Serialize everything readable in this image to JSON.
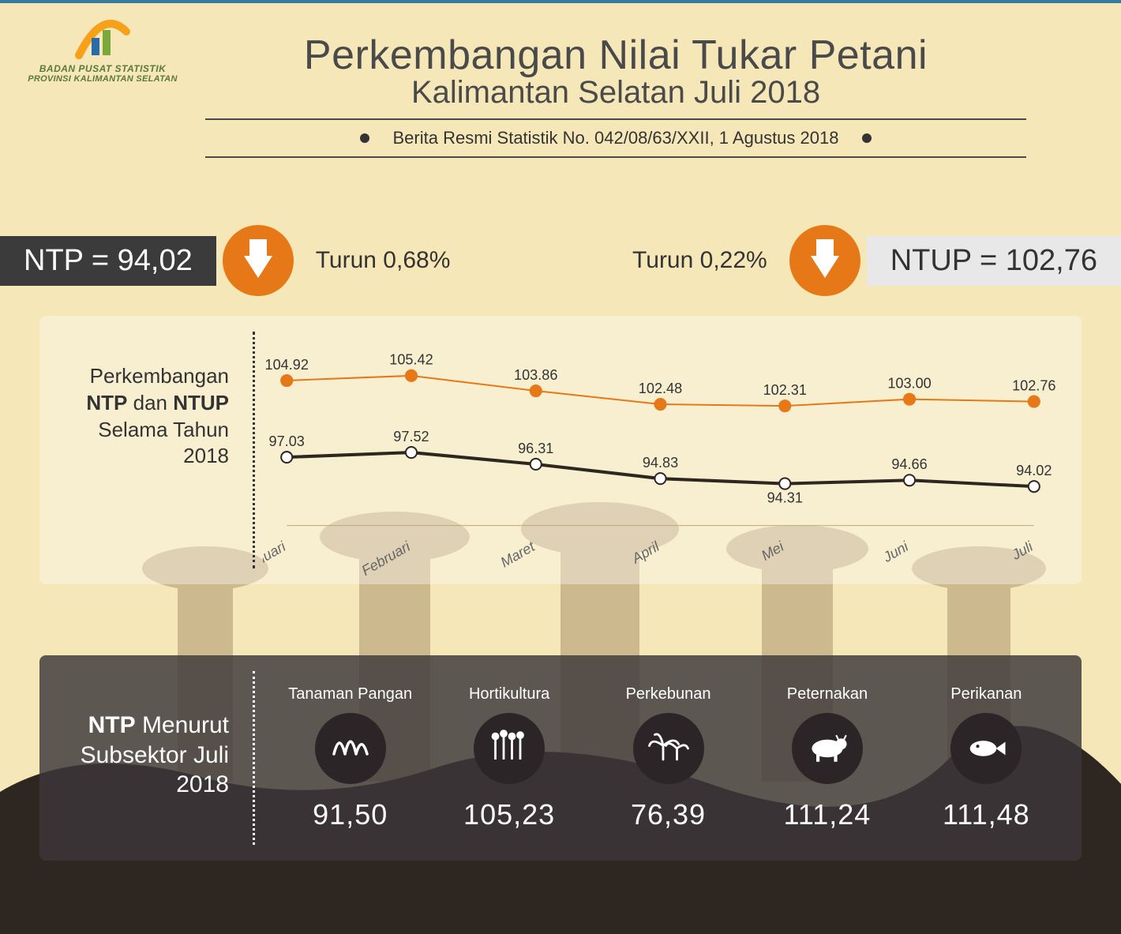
{
  "colors": {
    "background": "#f5e7b8",
    "accent_orange": "#e67817",
    "dark": "#3b3b3b",
    "line_ntp": "#2e2620",
    "line_ntup": "#e67817",
    "panel_chart_bg": "rgba(255,255,255,0.35)",
    "panel_sub_bg": "rgba(60,55,58,0.82)",
    "text": "#4a4a4a"
  },
  "logo": {
    "line1": "BADAN PUSAT STATISTIK",
    "line2": "PROVINSI KALIMANTAN SELATAN"
  },
  "title": {
    "main": "Perkembangan Nilai Tukar Petani",
    "sub": "Kalimantan Selatan Juli 2018",
    "source_line": "Berita Resmi Statistik No. 042/08/63/XXII, 1 Agustus 2018"
  },
  "metrics": {
    "ntp": {
      "label": "NTP = 94,02",
      "change_text": "Turun  0,68%",
      "arrow_color": "#e67817"
    },
    "ntup": {
      "label": "NTUP = 102,76",
      "change_text": "Turun  0,22%",
      "arrow_color": "#e67817"
    }
  },
  "chart": {
    "side_label_html": "Perkembangan <b>NTP</b> dan <b>NTUP</b> Selama Tahun 2018",
    "side_l1": "Perkembangan ",
    "side_b1": "NTP",
    "side_l2": " dan ",
    "side_b2": "NTUP",
    "side_l3": " Selama Tahun 2018",
    "months": [
      "Januari",
      "Februari",
      "Maret",
      "April",
      "Mei",
      "Juni",
      "Juli"
    ],
    "y_min": 90,
    "y_max": 108,
    "series": {
      "ntup": {
        "color": "#e67817",
        "stroke_width": 2,
        "marker_fill": "#e67817",
        "values": [
          104.92,
          105.42,
          103.86,
          102.48,
          102.31,
          103.0,
          102.76
        ],
        "labels": [
          "104.92",
          "105.42",
          "103.86",
          "102.48",
          "102.31",
          "103.00",
          "102.76"
        ]
      },
      "ntp": {
        "color": "#2e2620",
        "stroke_width": 4,
        "marker_fill": "#ffffff",
        "values": [
          97.03,
          97.52,
          96.31,
          94.83,
          94.31,
          94.66,
          94.02
        ],
        "labels": [
          "97.03",
          "97.52",
          "96.31",
          "94.83",
          "94.31",
          "94.66",
          "94.02"
        ]
      }
    }
  },
  "subsector": {
    "side_l1": "",
    "side_b1": "NTP",
    "side_l2": " Menurut Subsektor Juli  2018",
    "items": [
      {
        "label": "Tanaman Pangan",
        "value": "91,50",
        "icon": "grain"
      },
      {
        "label": "Hortikultura",
        "value": "105,23",
        "icon": "wheat"
      },
      {
        "label": "Perkebunan",
        "value": "76,39",
        "icon": "palm"
      },
      {
        "label": "Peternakan",
        "value": "111,24",
        "icon": "cow"
      },
      {
        "label": "Perikanan",
        "value": "111,48",
        "icon": "fish"
      }
    ]
  },
  "credit": ""
}
